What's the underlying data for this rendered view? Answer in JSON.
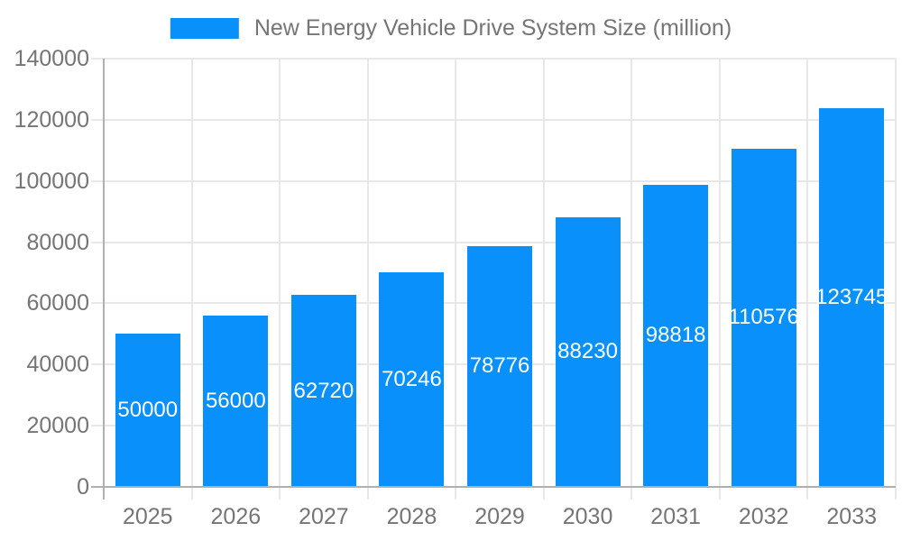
{
  "chart_data": {
    "type": "bar",
    "title": "New Energy Vehicle Drive System Size (million)",
    "categories": [
      "2025",
      "2026",
      "2027",
      "2028",
      "2029",
      "2030",
      "2031",
      "2032",
      "2033"
    ],
    "values": [
      50000,
      56000,
      62720,
      70246,
      78776,
      88230,
      98818,
      110576,
      123745
    ],
    "bar_labels": [
      "50000",
      "56000",
      "62720",
      "70246",
      "78776",
      "88230",
      "98818",
      "110576",
      "123745"
    ],
    "xlabel": "",
    "ylabel": "",
    "ylim": [
      0,
      140000
    ],
    "ytick_step": 20000,
    "ytick_labels": [
      "0",
      "20000",
      "40000",
      "60000",
      "80000",
      "100000",
      "120000",
      "140000"
    ],
    "legend_position": "top",
    "grid": true,
    "colors": {
      "bar": "#0990fb",
      "bar_label": "#ffffff",
      "axis_text": "#757575",
      "title_text": "#757575",
      "gridline": "#e8e8e8",
      "axis_line": "#b0b0b0",
      "background": "#ffffff"
    }
  }
}
